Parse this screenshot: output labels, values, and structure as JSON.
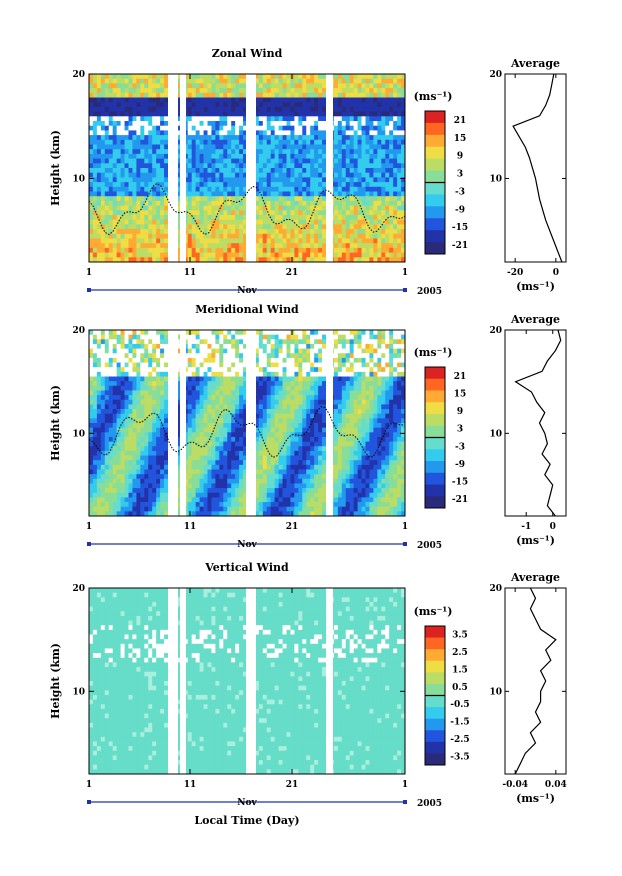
{
  "chart_data": [
    {
      "type": "heatmap",
      "title": "Zonal Wind",
      "ylabel": "Height (km)",
      "y_ticks": [
        "20",
        "10"
      ],
      "x_ticks": [
        "1",
        "11",
        "21",
        "1"
      ],
      "x_month": "Nov",
      "x_year": "2005",
      "unit_label": "(ms⁻¹)",
      "colorbar_ticks": [
        "21",
        "15",
        "9",
        "3",
        "-3",
        "-9",
        "-15",
        "-21"
      ],
      "ylim": [
        2,
        20
      ],
      "average": {
        "title": "Average",
        "x_ticks": [
          "-20",
          "0"
        ],
        "xlim": [
          -25,
          5
        ],
        "xlabel": "(ms⁻¹)",
        "y_ticks": [
          "20",
          "10"
        ],
        "heights": [
          2,
          4,
          6,
          8,
          10,
          12,
          13,
          14,
          15,
          16,
          17,
          18,
          19,
          20
        ],
        "values": [
          3,
          -1,
          -5,
          -8,
          -10,
          -13,
          -15,
          -18,
          -21,
          -8,
          -5,
          -3,
          -2,
          -1
        ]
      }
    },
    {
      "type": "heatmap",
      "title": "Meridional Wind",
      "ylabel": "Height (km)",
      "y_ticks": [
        "20",
        "10"
      ],
      "x_ticks": [
        "1",
        "11",
        "21",
        "1"
      ],
      "x_month": "Nov",
      "x_year": "2005",
      "unit_label": "(ms⁻¹)",
      "colorbar_ticks": [
        "21",
        "15",
        "9",
        "3",
        "-3",
        "-9",
        "-15",
        "-21"
      ],
      "ylim": [
        2,
        20
      ],
      "average": {
        "title": "Average",
        "x_ticks": [
          "-1",
          "0"
        ],
        "xlim": [
          -1.8,
          0.5
        ],
        "xlabel": "(ms⁻¹)",
        "y_ticks": [
          "20",
          "10"
        ],
        "heights": [
          2,
          3,
          4,
          5,
          6,
          7,
          8,
          9,
          10,
          11,
          12,
          13,
          14,
          15,
          16,
          17,
          18,
          19,
          20
        ],
        "values": [
          0.1,
          -0.2,
          -0.1,
          0.0,
          -0.3,
          -0.1,
          -0.4,
          -0.2,
          -0.3,
          -0.5,
          -0.3,
          -0.6,
          -0.8,
          -1.4,
          -0.4,
          -0.2,
          0.1,
          0.3,
          0.2
        ]
      }
    },
    {
      "type": "heatmap",
      "title": "Vertical Wind",
      "ylabel": "Height (km)",
      "xlabel": "Local Time (Day)",
      "y_ticks": [
        "20",
        "10"
      ],
      "x_ticks": [
        "1",
        "11",
        "21",
        "1"
      ],
      "x_month": "Nov",
      "x_year": "2005",
      "unit_label": "(ms⁻¹)",
      "colorbar_ticks": [
        "3.5",
        "2.5",
        "1.5",
        "0.5",
        "-0.5",
        "-1.5",
        "-2.5",
        "-3.5"
      ],
      "ylim": [
        2,
        20
      ],
      "average": {
        "title": "Average",
        "x_ticks": [
          "-0.04",
          "0.04"
        ],
        "xlim": [
          -0.06,
          0.06
        ],
        "xlabel": "(ms⁻¹)",
        "y_ticks": [
          "20",
          "10"
        ],
        "heights": [
          2,
          3,
          4,
          5,
          6,
          7,
          8,
          9,
          10,
          11,
          12,
          13,
          14,
          15,
          16,
          17,
          18,
          19,
          20
        ],
        "values": [
          -0.04,
          -0.03,
          -0.02,
          0.0,
          -0.01,
          0.01,
          0.0,
          0.01,
          0.01,
          0.02,
          0.01,
          0.03,
          0.02,
          0.04,
          0.01,
          0.0,
          -0.01,
          0.0,
          -0.01
        ]
      }
    }
  ],
  "colors": {
    "scale": [
      "#2a2a7a",
      "#2233aa",
      "#2255dd",
      "#2299ee",
      "#33ccee",
      "#66ddcc",
      "#88dd99",
      "#bbdd66",
      "#eedd44",
      "#ffaa33",
      "#ff6622",
      "#dd2222"
    ],
    "vertical_main": "#66ddc8",
    "vertical_accent": "#aaeedd"
  }
}
